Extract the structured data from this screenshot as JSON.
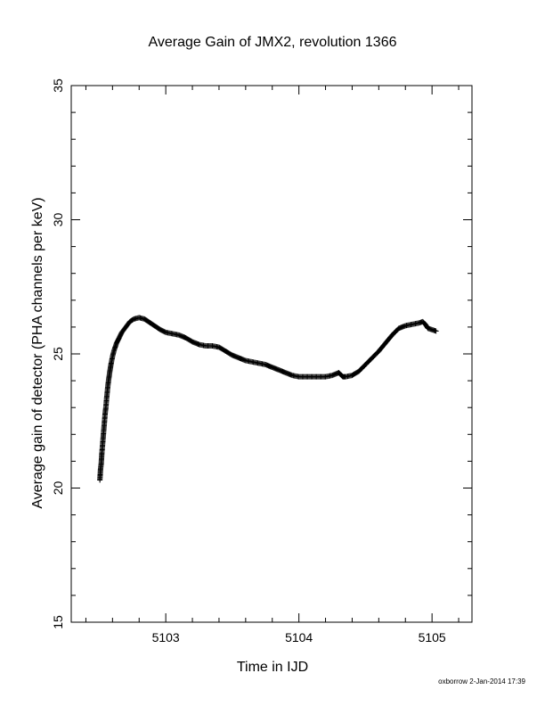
{
  "chart_data": {
    "type": "scatter",
    "title": "Average Gain of JMX2, revolution 1366",
    "xlabel": "Time in IJD",
    "ylabel": "Average gain of detector (PHA channels per keV)",
    "xlim": [
      5102.29,
      5105.3
    ],
    "ylim": [
      15,
      35
    ],
    "xticks": [
      "5103",
      "5104",
      "5105"
    ],
    "xtick_values": [
      5103,
      5104,
      5105
    ],
    "yticks": [
      "15",
      "20",
      "25",
      "30",
      "35"
    ],
    "ytick_values": [
      15,
      20,
      25,
      30,
      35
    ],
    "marker": "plus",
    "grid": false,
    "series": [
      {
        "x": [
          5102.505,
          5102.51,
          5102.515,
          5102.52,
          5102.525,
          5102.53,
          5102.535,
          5102.54,
          5102.545,
          5102.55,
          5102.555,
          5102.56,
          5102.565,
          5102.57,
          5102.58,
          5102.59,
          5102.6,
          5102.61,
          5102.62,
          5102.63,
          5102.65,
          5102.67,
          5102.7,
          5102.73,
          5102.76,
          5102.8,
          5102.84,
          5102.87,
          5102.9,
          5102.93,
          5102.96,
          5103.0,
          5103.05,
          5103.1,
          5103.15,
          5103.2,
          5103.25,
          5103.3,
          5103.35,
          5103.4,
          5103.45,
          5103.5,
          5103.55,
          5103.6,
          5103.65,
          5103.7,
          5103.75,
          5103.8,
          5103.85,
          5103.9,
          5103.95,
          5104.0,
          5104.05,
          5104.1,
          5104.15,
          5104.2,
          5104.25,
          5104.3,
          5104.32,
          5104.33,
          5104.35,
          5104.4,
          5104.45,
          5104.5,
          5104.55,
          5104.6,
          5104.65,
          5104.7,
          5104.75,
          5104.8,
          5104.85,
          5104.9,
          5104.93,
          5104.95,
          5104.97,
          5105.0,
          5105.03
        ],
        "y": [
          20.3,
          20.7,
          20.9,
          21.3,
          21.6,
          21.9,
          22.2,
          22.5,
          22.8,
          23.0,
          23.3,
          23.55,
          23.8,
          24.0,
          24.35,
          24.65,
          24.9,
          25.1,
          25.25,
          25.4,
          25.6,
          25.8,
          26.0,
          26.2,
          26.3,
          26.35,
          26.3,
          26.2,
          26.1,
          26.0,
          25.9,
          25.8,
          25.75,
          25.7,
          25.6,
          25.45,
          25.35,
          25.3,
          25.3,
          25.25,
          25.1,
          24.95,
          24.85,
          24.75,
          24.7,
          24.65,
          24.6,
          24.5,
          24.4,
          24.3,
          24.2,
          24.15,
          24.15,
          24.15,
          24.15,
          24.15,
          24.2,
          24.3,
          24.2,
          24.15,
          24.15,
          24.2,
          24.35,
          24.6,
          24.85,
          25.1,
          25.4,
          25.7,
          25.95,
          26.05,
          26.1,
          26.15,
          26.2,
          26.1,
          25.95,
          25.9,
          25.85
        ]
      }
    ]
  },
  "footer": "oxborrow  2-Jan-2014 17:39"
}
